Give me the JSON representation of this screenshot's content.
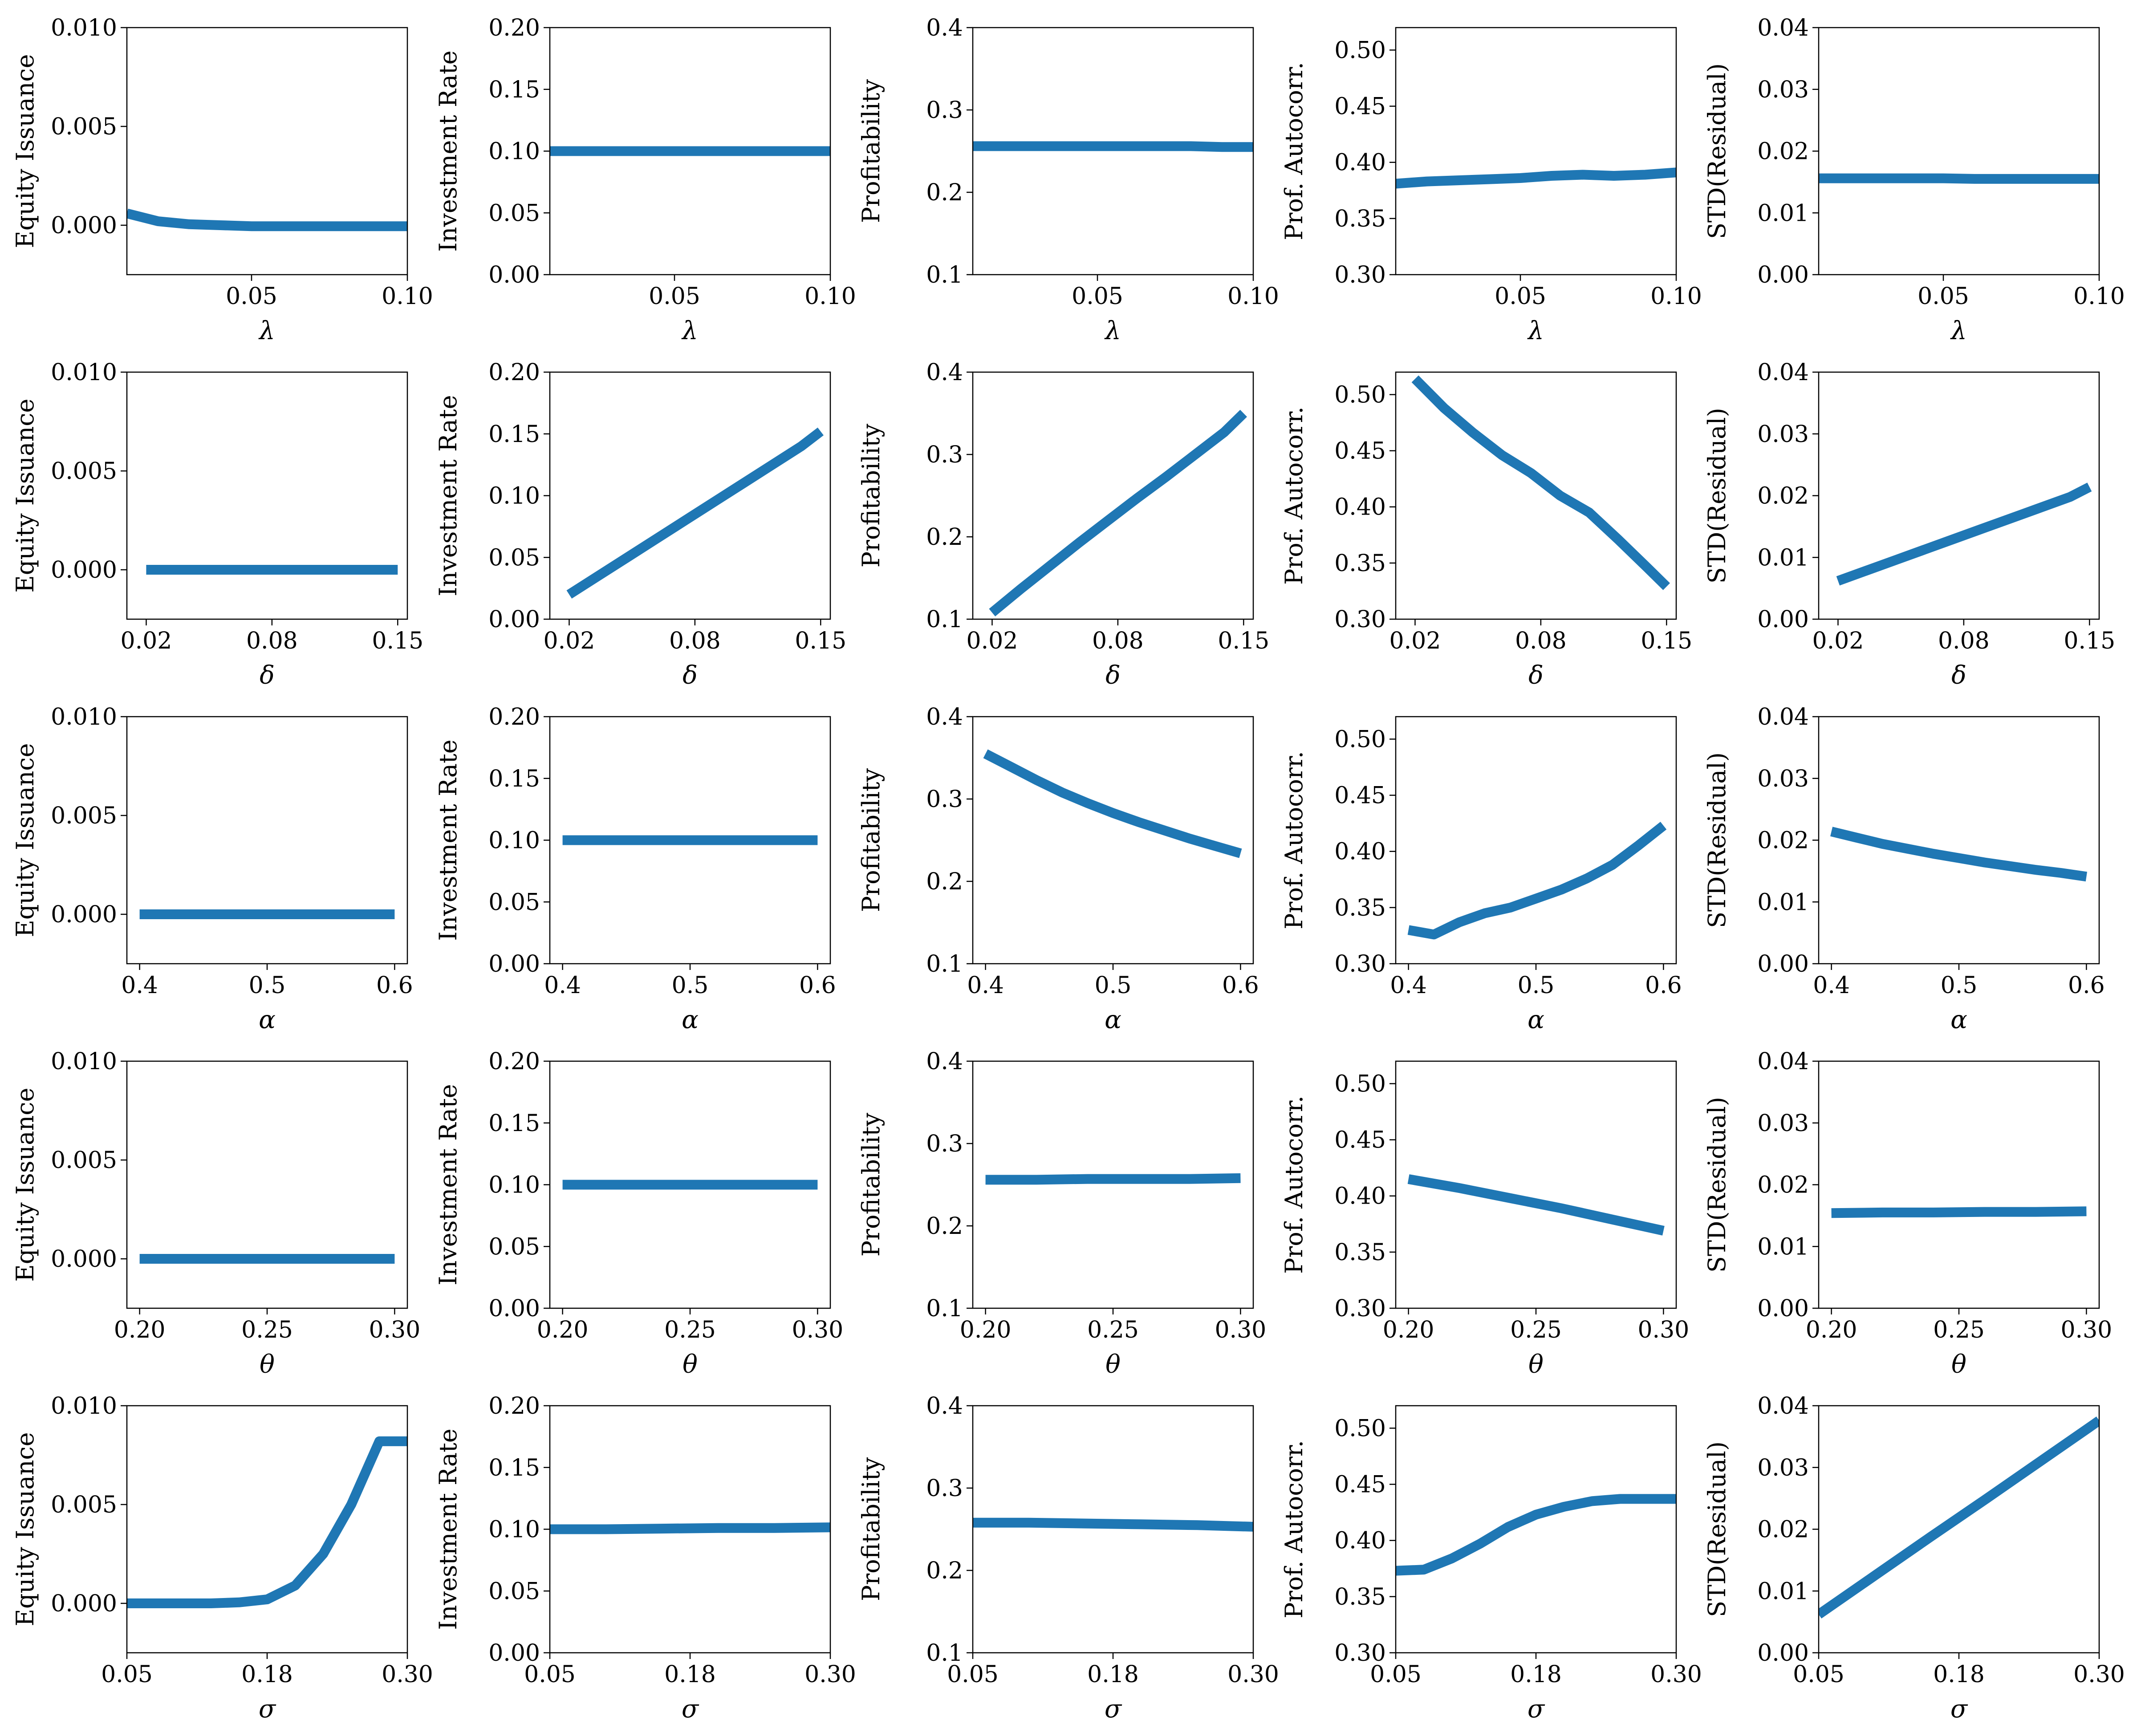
{
  "series_color": "#1f77b4",
  "columns": [
    {
      "ylabel": "Equity Issuance",
      "ylim": [
        -0.0025,
        0.01
      ],
      "yticks": [
        "0.000",
        "0.005",
        "0.010"
      ],
      "ytick_values": [
        0,
        0.005,
        0.01
      ]
    },
    {
      "ylabel": "Investment Rate",
      "ylim": [
        0,
        0.2
      ],
      "yticks": [
        "0.00",
        "0.05",
        "0.10",
        "0.15",
        "0.20"
      ],
      "ytick_values": [
        0,
        0.05,
        0.1,
        0.15,
        0.2
      ]
    },
    {
      "ylabel": "Profitability",
      "ylim": [
        0.1,
        0.4
      ],
      "yticks": [
        "0.1",
        "0.2",
        "0.3",
        "0.4"
      ],
      "ytick_values": [
        0.1,
        0.2,
        0.3,
        0.4
      ]
    },
    {
      "ylabel": "Prof. Autocorr.",
      "ylim": [
        0.3,
        0.52
      ],
      "yticks": [
        "0.30",
        "0.35",
        "0.40",
        "0.45",
        "0.50"
      ],
      "ytick_values": [
        0.3,
        0.35,
        0.4,
        0.45,
        0.5
      ]
    },
    {
      "ylabel": "STD(Residual)",
      "ylim": [
        0,
        0.04
      ],
      "yticks": [
        "0.00",
        "0.01",
        "0.02",
        "0.03",
        "0.04"
      ],
      "ytick_values": [
        0,
        0.01,
        0.02,
        0.03,
        0.04
      ]
    }
  ],
  "rows": [
    {
      "xlabel": "λ",
      "xlim": [
        0.01,
        0.1
      ],
      "xticks": [
        "0.05",
        "0.10"
      ],
      "xtick_values": [
        0.05,
        0.1
      ]
    },
    {
      "xlabel": "δ",
      "xlim": [
        0.01,
        0.155
      ],
      "xticks": [
        "0.02",
        "0.08",
        "0.15"
      ],
      "xtick_values": [
        0.02,
        0.085,
        0.15
      ]
    },
    {
      "xlabel": "α",
      "xlim": [
        0.39,
        0.61
      ],
      "xticks": [
        "0.4",
        "0.5",
        "0.6"
      ],
      "xtick_values": [
        0.4,
        0.5,
        0.6
      ]
    },
    {
      "xlabel": "θ",
      "xlim": [
        0.195,
        0.305
      ],
      "xticks": [
        "0.20",
        "0.25",
        "0.30"
      ],
      "xtick_values": [
        0.2,
        0.25,
        0.3
      ]
    },
    {
      "xlabel": "σ",
      "xlim": [
        0.05,
        0.3
      ],
      "xticks": [
        "0.05",
        "0.18",
        "0.30"
      ],
      "xtick_values": [
        0.05,
        0.175,
        0.3
      ]
    }
  ],
  "chart_data": [
    {
      "type": "line",
      "xlabel": "λ",
      "ylabel": "Equity Issuance",
      "x": [
        0.01,
        0.02,
        0.03,
        0.04,
        0.05,
        0.06,
        0.07,
        0.08,
        0.09,
        0.1
      ],
      "y": [
        0.0006,
        0.0002,
        5e-05,
        0.0,
        -5e-05,
        -5e-05,
        -5e-05,
        -5e-05,
        -5e-05,
        -5e-05
      ]
    },
    {
      "type": "line",
      "xlabel": "λ",
      "ylabel": "Investment Rate",
      "x": [
        0.01,
        0.02,
        0.03,
        0.04,
        0.05,
        0.06,
        0.07,
        0.08,
        0.09,
        0.1
      ],
      "y": [
        0.1,
        0.1,
        0.1,
        0.1,
        0.1,
        0.1,
        0.1,
        0.1,
        0.1,
        0.1
      ]
    },
    {
      "type": "line",
      "xlabel": "λ",
      "ylabel": "Profitability",
      "x": [
        0.01,
        0.02,
        0.03,
        0.04,
        0.05,
        0.06,
        0.07,
        0.08,
        0.09,
        0.1
      ],
      "y": [
        0.256,
        0.256,
        0.256,
        0.256,
        0.256,
        0.256,
        0.256,
        0.256,
        0.255,
        0.255
      ]
    },
    {
      "type": "line",
      "xlabel": "λ",
      "ylabel": "Prof. Autocorr.",
      "x": [
        0.01,
        0.02,
        0.03,
        0.04,
        0.05,
        0.06,
        0.07,
        0.08,
        0.09,
        0.1
      ],
      "y": [
        0.381,
        0.383,
        0.384,
        0.385,
        0.386,
        0.388,
        0.389,
        0.388,
        0.389,
        0.391
      ]
    },
    {
      "type": "line",
      "xlabel": "λ",
      "ylabel": "STD(Residual)",
      "x": [
        0.01,
        0.02,
        0.03,
        0.04,
        0.05,
        0.06,
        0.07,
        0.08,
        0.09,
        0.1
      ],
      "y": [
        0.0156,
        0.0156,
        0.0156,
        0.0156,
        0.0156,
        0.0155,
        0.0155,
        0.0155,
        0.0155,
        0.0155
      ]
    },
    {
      "type": "line",
      "xlabel": "δ",
      "ylabel": "Equity Issuance",
      "x": [
        0.02,
        0.035,
        0.05,
        0.065,
        0.08,
        0.095,
        0.11,
        0.125,
        0.14,
        0.15
      ],
      "y": [
        0.0,
        0.0,
        0.0,
        0.0,
        0.0,
        0.0,
        0.0,
        0.0,
        0.0,
        0.0
      ]
    },
    {
      "type": "line",
      "xlabel": "δ",
      "ylabel": "Investment Rate",
      "x": [
        0.02,
        0.035,
        0.05,
        0.065,
        0.08,
        0.095,
        0.11,
        0.125,
        0.14,
        0.15
      ],
      "y": [
        0.02,
        0.035,
        0.05,
        0.065,
        0.08,
        0.095,
        0.11,
        0.125,
        0.14,
        0.152
      ]
    },
    {
      "type": "line",
      "xlabel": "δ",
      "ylabel": "Profitability",
      "x": [
        0.02,
        0.035,
        0.05,
        0.065,
        0.08,
        0.095,
        0.11,
        0.125,
        0.14,
        0.15
      ],
      "y": [
        0.108,
        0.137,
        0.165,
        0.193,
        0.22,
        0.247,
        0.273,
        0.3,
        0.327,
        0.35
      ]
    },
    {
      "type": "line",
      "xlabel": "δ",
      "ylabel": "Prof. Autocorr.",
      "x": [
        0.02,
        0.035,
        0.05,
        0.065,
        0.08,
        0.095,
        0.11,
        0.125,
        0.14,
        0.15
      ],
      "y": [
        0.514,
        0.488,
        0.466,
        0.446,
        0.43,
        0.41,
        0.395,
        0.371,
        0.346,
        0.329
      ]
    },
    {
      "type": "line",
      "xlabel": "δ",
      "ylabel": "STD(Residual)",
      "x": [
        0.02,
        0.035,
        0.05,
        0.065,
        0.08,
        0.095,
        0.11,
        0.125,
        0.14,
        0.15
      ],
      "y": [
        0.0062,
        0.0079,
        0.0096,
        0.0113,
        0.013,
        0.0147,
        0.0164,
        0.0181,
        0.0198,
        0.0214
      ]
    },
    {
      "type": "line",
      "xlabel": "α",
      "ylabel": "Equity Issuance",
      "x": [
        0.4,
        0.42,
        0.44,
        0.46,
        0.48,
        0.5,
        0.52,
        0.54,
        0.56,
        0.58,
        0.6
      ],
      "y": [
        0.0,
        0.0,
        0.0,
        0.0,
        0.0,
        0.0,
        0.0,
        0.0,
        0.0,
        0.0,
        0.0
      ]
    },
    {
      "type": "line",
      "xlabel": "α",
      "ylabel": "Investment Rate",
      "x": [
        0.4,
        0.42,
        0.44,
        0.46,
        0.48,
        0.5,
        0.52,
        0.54,
        0.56,
        0.58,
        0.6
      ],
      "y": [
        0.1,
        0.1,
        0.1,
        0.1,
        0.1,
        0.1,
        0.1,
        0.1,
        0.1,
        0.1,
        0.1
      ]
    },
    {
      "type": "line",
      "xlabel": "α",
      "ylabel": "Profitability",
      "x": [
        0.4,
        0.42,
        0.44,
        0.46,
        0.48,
        0.5,
        0.52,
        0.54,
        0.56,
        0.58,
        0.6
      ],
      "y": [
        0.355,
        0.339,
        0.323,
        0.308,
        0.295,
        0.283,
        0.272,
        0.262,
        0.252,
        0.243,
        0.234
      ]
    },
    {
      "type": "line",
      "xlabel": "α",
      "ylabel": "Prof. Autocorr.",
      "x": [
        0.4,
        0.42,
        0.44,
        0.46,
        0.48,
        0.5,
        0.52,
        0.54,
        0.56,
        0.58,
        0.6
      ],
      "y": [
        0.33,
        0.326,
        0.337,
        0.345,
        0.35,
        0.358,
        0.366,
        0.376,
        0.388,
        0.405,
        0.423
      ]
    },
    {
      "type": "line",
      "xlabel": "α",
      "ylabel": "STD(Residual)",
      "x": [
        0.4,
        0.42,
        0.44,
        0.46,
        0.48,
        0.5,
        0.52,
        0.54,
        0.56,
        0.58,
        0.6
      ],
      "y": [
        0.0214,
        0.0204,
        0.0194,
        0.0186,
        0.0178,
        0.0171,
        0.0164,
        0.0158,
        0.0152,
        0.0147,
        0.0141
      ]
    },
    {
      "type": "line",
      "xlabel": "θ",
      "ylabel": "Equity Issuance",
      "x": [
        0.2,
        0.22,
        0.24,
        0.26,
        0.28,
        0.3
      ],
      "y": [
        0.0,
        0.0,
        0.0,
        0.0,
        0.0,
        0.0
      ]
    },
    {
      "type": "line",
      "xlabel": "θ",
      "ylabel": "Investment Rate",
      "x": [
        0.2,
        0.22,
        0.24,
        0.26,
        0.28,
        0.3
      ],
      "y": [
        0.1,
        0.1,
        0.1,
        0.1,
        0.1,
        0.1
      ]
    },
    {
      "type": "line",
      "xlabel": "θ",
      "ylabel": "Profitability",
      "x": [
        0.2,
        0.22,
        0.24,
        0.26,
        0.28,
        0.3
      ],
      "y": [
        0.256,
        0.256,
        0.257,
        0.257,
        0.257,
        0.258
      ]
    },
    {
      "type": "line",
      "xlabel": "θ",
      "ylabel": "Prof. Autocorr.",
      "x": [
        0.2,
        0.22,
        0.24,
        0.26,
        0.28,
        0.3
      ],
      "y": [
        0.415,
        0.407,
        0.398,
        0.389,
        0.379,
        0.369
      ]
    },
    {
      "type": "line",
      "xlabel": "θ",
      "ylabel": "STD(Residual)",
      "x": [
        0.2,
        0.22,
        0.24,
        0.26,
        0.28,
        0.3
      ],
      "y": [
        0.0154,
        0.0155,
        0.0155,
        0.0156,
        0.0156,
        0.0157
      ]
    },
    {
      "type": "line",
      "xlabel": "σ",
      "ylabel": "Equity Issuance",
      "x": [
        0.05,
        0.075,
        0.1,
        0.125,
        0.15,
        0.175,
        0.2,
        0.225,
        0.25,
        0.275,
        0.3
      ],
      "y": [
        0.0,
        0.0,
        0.0,
        0.0,
        5e-05,
        0.0002,
        0.0009,
        0.0025,
        0.005,
        0.0082,
        0.0082
      ]
    },
    {
      "type": "line",
      "xlabel": "σ",
      "ylabel": "Investment Rate",
      "x": [
        0.05,
        0.1,
        0.15,
        0.2,
        0.25,
        0.3
      ],
      "y": [
        0.1,
        0.1,
        0.1005,
        0.101,
        0.101,
        0.1015
      ]
    },
    {
      "type": "line",
      "xlabel": "σ",
      "ylabel": "Profitability",
      "x": [
        0.05,
        0.1,
        0.15,
        0.2,
        0.25,
        0.3
      ],
      "y": [
        0.258,
        0.258,
        0.257,
        0.256,
        0.255,
        0.253
      ]
    },
    {
      "type": "line",
      "xlabel": "σ",
      "ylabel": "Prof. Autocorr.",
      "x": [
        0.05,
        0.075,
        0.1,
        0.125,
        0.15,
        0.175,
        0.2,
        0.225,
        0.25,
        0.275,
        0.3
      ],
      "y": [
        0.373,
        0.374,
        0.384,
        0.397,
        0.412,
        0.423,
        0.43,
        0.435,
        0.437,
        0.437,
        0.437
      ]
    },
    {
      "type": "line",
      "xlabel": "σ",
      "ylabel": "STD(Residual)",
      "x": [
        0.05,
        0.1,
        0.15,
        0.2,
        0.25,
        0.3
      ],
      "y": [
        0.0062,
        0.0125,
        0.0188,
        0.025,
        0.0313,
        0.0376
      ]
    }
  ]
}
